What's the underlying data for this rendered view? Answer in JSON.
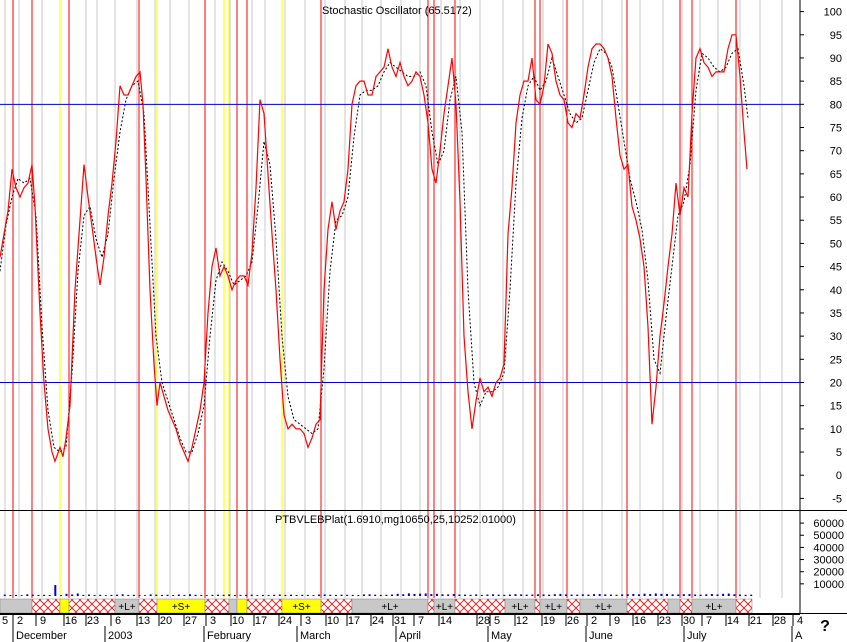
{
  "chart_data": {
    "type": "line",
    "title": "Stochastic Oscillator (65.5172)",
    "y_ticks": [
      100,
      95,
      90,
      85,
      80,
      75,
      70,
      65,
      60,
      55,
      50,
      45,
      40,
      35,
      30,
      25,
      20,
      15,
      10,
      5,
      0,
      -5
    ],
    "ylim": [
      -7.5,
      102.5
    ],
    "reference_lines": [
      80,
      20
    ],
    "k_series": [
      [
        0,
        47
      ],
      [
        4,
        52
      ],
      [
        8,
        57
      ],
      [
        12,
        66
      ],
      [
        16,
        62
      ],
      [
        20,
        60
      ],
      [
        24,
        62
      ],
      [
        28,
        63
      ],
      [
        32,
        67
      ],
      [
        35,
        58
      ],
      [
        40,
        35
      ],
      [
        44,
        20
      ],
      [
        48,
        10
      ],
      [
        52,
        5
      ],
      [
        55,
        3
      ],
      [
        60,
        6
      ],
      [
        63,
        4
      ],
      [
        66,
        8
      ],
      [
        70,
        15
      ],
      [
        75,
        40
      ],
      [
        80,
        55
      ],
      [
        84,
        67
      ],
      [
        88,
        60
      ],
      [
        93,
        52
      ],
      [
        96,
        47
      ],
      [
        100,
        41
      ],
      [
        104,
        47
      ],
      [
        108,
        56
      ],
      [
        112,
        63
      ],
      [
        116,
        72
      ],
      [
        120,
        84
      ],
      [
        124,
        82
      ],
      [
        128,
        82
      ],
      [
        132,
        84
      ],
      [
        136,
        86
      ],
      [
        140,
        87
      ],
      [
        143,
        80
      ],
      [
        146,
        64
      ],
      [
        150,
        40
      ],
      [
        154,
        24
      ],
      [
        157,
        15
      ],
      [
        160,
        20
      ],
      [
        164,
        17
      ],
      [
        168,
        14
      ],
      [
        172,
        12
      ],
      [
        176,
        10
      ],
      [
        180,
        7
      ],
      [
        184,
        5
      ],
      [
        188,
        3
      ],
      [
        192,
        6
      ],
      [
        196,
        10
      ],
      [
        200,
        14
      ],
      [
        204,
        20
      ],
      [
        208,
        35
      ],
      [
        212,
        45
      ],
      [
        216,
        49
      ],
      [
        220,
        43
      ],
      [
        224,
        45
      ],
      [
        228,
        43
      ],
      [
        232,
        40
      ],
      [
        236,
        42
      ],
      [
        240,
        43
      ],
      [
        244,
        43
      ],
      [
        248,
        41
      ],
      [
        252,
        48
      ],
      [
        256,
        62
      ],
      [
        260,
        81
      ],
      [
        264,
        78
      ],
      [
        268,
        65
      ],
      [
        272,
        52
      ],
      [
        276,
        40
      ],
      [
        280,
        25
      ],
      [
        284,
        13
      ],
      [
        288,
        10
      ],
      [
        292,
        11
      ],
      [
        296,
        10
      ],
      [
        300,
        10
      ],
      [
        304,
        9
      ],
      [
        308,
        6
      ],
      [
        312,
        8
      ],
      [
        316,
        11
      ],
      [
        320,
        12
      ],
      [
        324,
        40
      ],
      [
        328,
        53
      ],
      [
        332,
        59
      ],
      [
        336,
        53
      ],
      [
        340,
        57
      ],
      [
        344,
        59
      ],
      [
        348,
        66
      ],
      [
        352,
        80
      ],
      [
        356,
        84
      ],
      [
        360,
        85
      ],
      [
        364,
        85
      ],
      [
        368,
        82
      ],
      [
        372,
        82
      ],
      [
        376,
        86
      ],
      [
        380,
        87
      ],
      [
        384,
        88
      ],
      [
        388,
        92
      ],
      [
        392,
        88
      ],
      [
        396,
        86
      ],
      [
        400,
        89
      ],
      [
        404,
        86
      ],
      [
        408,
        84
      ],
      [
        412,
        85
      ],
      [
        416,
        87
      ],
      [
        420,
        86
      ],
      [
        424,
        82
      ],
      [
        428,
        76
      ],
      [
        432,
        66
      ],
      [
        436,
        63
      ],
      [
        440,
        70
      ],
      [
        444,
        78
      ],
      [
        448,
        84
      ],
      [
        452,
        90
      ],
      [
        456,
        80
      ],
      [
        460,
        59
      ],
      [
        464,
        30
      ],
      [
        468,
        18
      ],
      [
        472,
        10
      ],
      [
        476,
        16
      ],
      [
        480,
        21
      ],
      [
        484,
        18
      ],
      [
        488,
        19
      ],
      [
        492,
        17
      ],
      [
        496,
        20
      ],
      [
        500,
        21
      ],
      [
        504,
        24
      ],
      [
        508,
        52
      ],
      [
        512,
        62
      ],
      [
        516,
        76
      ],
      [
        520,
        82
      ],
      [
        524,
        85
      ],
      [
        528,
        85
      ],
      [
        532,
        90
      ],
      [
        536,
        81
      ],
      [
        540,
        80
      ],
      [
        544,
        84
      ],
      [
        548,
        93
      ],
      [
        552,
        91
      ],
      [
        556,
        85
      ],
      [
        560,
        82
      ],
      [
        564,
        81
      ],
      [
        568,
        76
      ],
      [
        572,
        75
      ],
      [
        576,
        78
      ],
      [
        580,
        77
      ],
      [
        584,
        82
      ],
      [
        588,
        88
      ],
      [
        592,
        92
      ],
      [
        596,
        93
      ],
      [
        600,
        93
      ],
      [
        604,
        92
      ],
      [
        608,
        90
      ],
      [
        612,
        86
      ],
      [
        616,
        77
      ],
      [
        620,
        69
      ],
      [
        624,
        66
      ],
      [
        628,
        67
      ],
      [
        632,
        58
      ],
      [
        636,
        55
      ],
      [
        640,
        51
      ],
      [
        644,
        45
      ],
      [
        648,
        32
      ],
      [
        652,
        11
      ],
      [
        656,
        19
      ],
      [
        660,
        30
      ],
      [
        664,
        37
      ],
      [
        668,
        45
      ],
      [
        672,
        52
      ],
      [
        676,
        63
      ],
      [
        680,
        56
      ],
      [
        684,
        62
      ],
      [
        688,
        60
      ],
      [
        692,
        78
      ],
      [
        696,
        90
      ],
      [
        700,
        92
      ],
      [
        704,
        89
      ],
      [
        708,
        88
      ],
      [
        712,
        86
      ],
      [
        716,
        87
      ],
      [
        720,
        87
      ],
      [
        724,
        87
      ],
      [
        728,
        92
      ],
      [
        732,
        95
      ],
      [
        736,
        95
      ],
      [
        740,
        86
      ],
      [
        744,
        74
      ],
      [
        747,
        66
      ]
    ],
    "d_series": [
      [
        0,
        44
      ],
      [
        6,
        54
      ],
      [
        12,
        60
      ],
      [
        18,
        64
      ],
      [
        24,
        63
      ],
      [
        30,
        64
      ],
      [
        36,
        56
      ],
      [
        42,
        32
      ],
      [
        48,
        14
      ],
      [
        54,
        6
      ],
      [
        60,
        5
      ],
      [
        66,
        6
      ],
      [
        72,
        22
      ],
      [
        78,
        44
      ],
      [
        84,
        56
      ],
      [
        90,
        58
      ],
      [
        96,
        51
      ],
      [
        102,
        47
      ],
      [
        108,
        52
      ],
      [
        114,
        64
      ],
      [
        120,
        74
      ],
      [
        126,
        81
      ],
      [
        132,
        84
      ],
      [
        138,
        85
      ],
      [
        144,
        78
      ],
      [
        150,
        54
      ],
      [
        156,
        30
      ],
      [
        162,
        20
      ],
      [
        168,
        16
      ],
      [
        174,
        12
      ],
      [
        180,
        8
      ],
      [
        186,
        5
      ],
      [
        192,
        5
      ],
      [
        198,
        9
      ],
      [
        204,
        15
      ],
      [
        210,
        30
      ],
      [
        216,
        42
      ],
      [
        222,
        46
      ],
      [
        228,
        44
      ],
      [
        234,
        41
      ],
      [
        240,
        42
      ],
      [
        246,
        43
      ],
      [
        252,
        46
      ],
      [
        258,
        58
      ],
      [
        264,
        72
      ],
      [
        270,
        67
      ],
      [
        276,
        51
      ],
      [
        282,
        30
      ],
      [
        288,
        17
      ],
      [
        294,
        12
      ],
      [
        300,
        11
      ],
      [
        306,
        10
      ],
      [
        312,
        9
      ],
      [
        318,
        10
      ],
      [
        324,
        23
      ],
      [
        330,
        44
      ],
      [
        336,
        55
      ],
      [
        342,
        56
      ],
      [
        348,
        60
      ],
      [
        354,
        73
      ],
      [
        360,
        82
      ],
      [
        366,
        83
      ],
      [
        372,
        83
      ],
      [
        378,
        84
      ],
      [
        384,
        87
      ],
      [
        390,
        89
      ],
      [
        396,
        88
      ],
      [
        402,
        87
      ],
      [
        408,
        86
      ],
      [
        414,
        86
      ],
      [
        420,
        87
      ],
      [
        426,
        84
      ],
      [
        432,
        74
      ],
      [
        438,
        67
      ],
      [
        444,
        70
      ],
      [
        450,
        81
      ],
      [
        456,
        86
      ],
      [
        462,
        74
      ],
      [
        468,
        40
      ],
      [
        474,
        20
      ],
      [
        480,
        15
      ],
      [
        486,
        18
      ],
      [
        492,
        18
      ],
      [
        498,
        19
      ],
      [
        504,
        22
      ],
      [
        510,
        40
      ],
      [
        516,
        63
      ],
      [
        522,
        77
      ],
      [
        528,
        84
      ],
      [
        534,
        86
      ],
      [
        540,
        83
      ],
      [
        546,
        85
      ],
      [
        552,
        90
      ],
      [
        558,
        86
      ],
      [
        564,
        82
      ],
      [
        570,
        78
      ],
      [
        576,
        76
      ],
      [
        582,
        77
      ],
      [
        588,
        83
      ],
      [
        594,
        89
      ],
      [
        600,
        92
      ],
      [
        606,
        91
      ],
      [
        612,
        88
      ],
      [
        618,
        80
      ],
      [
        624,
        72
      ],
      [
        630,
        64
      ],
      [
        636,
        59
      ],
      [
        642,
        53
      ],
      [
        648,
        42
      ],
      [
        654,
        25
      ],
      [
        660,
        22
      ],
      [
        666,
        34
      ],
      [
        672,
        45
      ],
      [
        678,
        56
      ],
      [
        684,
        59
      ],
      [
        690,
        67
      ],
      [
        696,
        83
      ],
      [
        702,
        91
      ],
      [
        708,
        90
      ],
      [
        714,
        88
      ],
      [
        720,
        87
      ],
      [
        726,
        88
      ],
      [
        732,
        91
      ],
      [
        738,
        92
      ],
      [
        744,
        84
      ],
      [
        748,
        77
      ]
    ],
    "x_tick_labels": [
      "5",
      "2",
      "9",
      "16",
      "23",
      "6",
      "13",
      "20",
      "27",
      "3",
      "10",
      "17",
      "24",
      "3",
      "10",
      "17",
      "24",
      "31",
      "7",
      "14",
      "28",
      "5",
      "12",
      "19",
      "26",
      "2",
      "9",
      "16",
      "23",
      "30",
      "7",
      "14",
      "21",
      "28",
      "4"
    ],
    "month_labels": [
      "December",
      "2003",
      "February",
      "March",
      "April",
      "May",
      "June",
      "July",
      "A"
    ],
    "red_lines_x": [
      13,
      32,
      69,
      139,
      205,
      237,
      247,
      321,
      428,
      434,
      455,
      535,
      540,
      567,
      627,
      680,
      692,
      736
    ],
    "yellow_lines_x": [
      60,
      157,
      224,
      229,
      282
    ],
    "gray_lines_x": [
      5,
      19,
      42,
      86,
      97,
      115,
      137,
      155,
      170,
      189,
      215,
      230,
      252,
      265,
      285,
      305,
      325,
      345,
      362,
      381,
      401,
      420,
      441,
      460,
      480,
      503,
      523,
      543,
      563,
      583,
      602,
      622,
      640,
      663,
      682,
      700,
      718,
      740,
      760,
      782
    ],
    "lower_panel": {
      "title": "PTBVLEBPlat(1.6910,mg10650,25,10252.01000)",
      "y_ticks": [
        "60000",
        "50000",
        "40000",
        "30000",
        "20000",
        "10000"
      ],
      "volume_values": [
        1200,
        800,
        900,
        700,
        1400,
        1100,
        900,
        1000,
        800,
        9000,
        700,
        1800,
        1300,
        2100,
        900,
        1200,
        800,
        1000,
        700,
        900,
        1100,
        1400,
        900,
        1000,
        800,
        700,
        1300,
        1100,
        900,
        1000,
        800,
        1200,
        900,
        1400,
        1000,
        800,
        700,
        900,
        1100,
        1000,
        1300,
        800,
        900,
        1000,
        1100,
        700,
        900,
        800,
        1000,
        1200,
        900,
        1100,
        800,
        1000,
        900,
        700,
        1200,
        1300,
        1000,
        900,
        1100,
        1000,
        900,
        800,
        1300,
        1400,
        1100,
        900,
        1000,
        1200,
        1800,
        1500,
        2200,
        1700,
        1900,
        2100,
        1600,
        1800,
        1400,
        1300,
        1600,
        1200,
        1100,
        1000,
        1300,
        900,
        1200,
        1400,
        1100,
        1000,
        1200,
        1500,
        1300,
        1100,
        1200,
        1400,
        1300,
        1100,
        1500,
        1700,
        1300,
        1200,
        1100,
        1400,
        1200,
        1500,
        1600,
        1300,
        1200,
        1000,
        1300,
        1500,
        1700,
        1400,
        1900,
        1600,
        2100,
        1800,
        1700,
        1400,
        1300,
        1500,
        1600,
        1200,
        1100,
        1400,
        1600,
        1300,
        1800,
        2000,
        1400,
        1200,
        1000,
        1100
      ]
    },
    "signal_band": [
      {
        "from": 0,
        "to": 32,
        "kind": "gray",
        "label": ""
      },
      {
        "from": 32,
        "to": 60,
        "kind": "hatch",
        "label": ""
      },
      {
        "from": 60,
        "to": 69,
        "kind": "yellow",
        "label": ""
      },
      {
        "from": 69,
        "to": 115,
        "kind": "hatch",
        "label": ""
      },
      {
        "from": 115,
        "to": 139,
        "kind": "gray",
        "label": "+L+"
      },
      {
        "from": 139,
        "to": 157,
        "kind": "hatch",
        "label": ""
      },
      {
        "from": 157,
        "to": 205,
        "kind": "yellow",
        "label": "+S+"
      },
      {
        "from": 205,
        "to": 229,
        "kind": "hatch",
        "label": ""
      },
      {
        "from": 229,
        "to": 237,
        "kind": "gray",
        "label": ""
      },
      {
        "from": 237,
        "to": 247,
        "kind": "yellow",
        "label": ""
      },
      {
        "from": 247,
        "to": 282,
        "kind": "hatch",
        "label": ""
      },
      {
        "from": 282,
        "to": 321,
        "kind": "yellow",
        "label": "+S+"
      },
      {
        "from": 321,
        "to": 352,
        "kind": "hatch",
        "label": ""
      },
      {
        "from": 352,
        "to": 428,
        "kind": "gray",
        "label": "+L+"
      },
      {
        "from": 428,
        "to": 434,
        "kind": "hatch",
        "label": ""
      },
      {
        "from": 434,
        "to": 455,
        "kind": "gray",
        "label": "+L+"
      },
      {
        "from": 455,
        "to": 505,
        "kind": "hatch",
        "label": ""
      },
      {
        "from": 505,
        "to": 535,
        "kind": "gray",
        "label": "+L+"
      },
      {
        "from": 535,
        "to": 540,
        "kind": "hatch",
        "label": ""
      },
      {
        "from": 540,
        "to": 567,
        "kind": "gray",
        "label": "+L+"
      },
      {
        "from": 567,
        "to": 580,
        "kind": "hatch",
        "label": ""
      },
      {
        "from": 580,
        "to": 627,
        "kind": "gray",
        "label": "+L+"
      },
      {
        "from": 627,
        "to": 668,
        "kind": "hatch",
        "label": ""
      },
      {
        "from": 668,
        "to": 680,
        "kind": "gray",
        "label": ""
      },
      {
        "from": 680,
        "to": 692,
        "kind": "hatch",
        "label": ""
      },
      {
        "from": 692,
        "to": 736,
        "kind": "gray",
        "label": "+L+"
      },
      {
        "from": 736,
        "to": 752,
        "kind": "hatch",
        "label": ""
      }
    ],
    "colors": {
      "k_line": "#ff0000",
      "d_line": "#000000",
      "reference": "#0000cc",
      "signal_red": "#ff0000",
      "signal_yellow": "#ffff00",
      "grid_gray": "#c8c8c8",
      "volume": "#0000cc"
    }
  },
  "help_label": "?"
}
